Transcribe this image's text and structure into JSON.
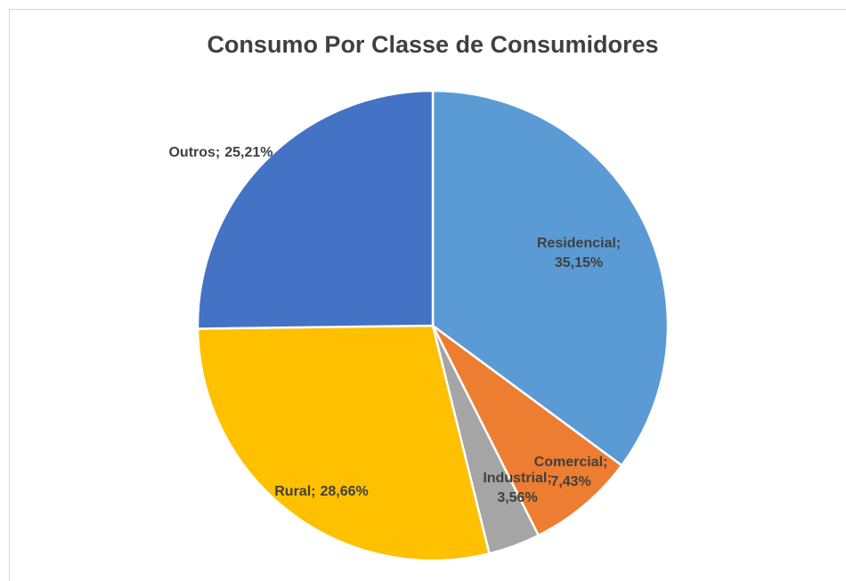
{
  "chart_data": {
    "type": "pie",
    "title": "Consumo Por Classe de Consumidores",
    "categories": [
      "Residencial",
      "Comercial",
      "Industrial",
      "Rural",
      "Outros"
    ],
    "values": [
      35.15,
      7.43,
      3.56,
      28.66,
      25.21
    ],
    "value_labels": [
      "35,15%",
      "7,43%",
      "3,56%",
      "28,66%",
      "25,21%"
    ],
    "label_separator": ";",
    "colors": [
      "#5b9bd5",
      "#ed7d31",
      "#a5a5a5",
      "#ffc000",
      "#4472c4"
    ]
  }
}
